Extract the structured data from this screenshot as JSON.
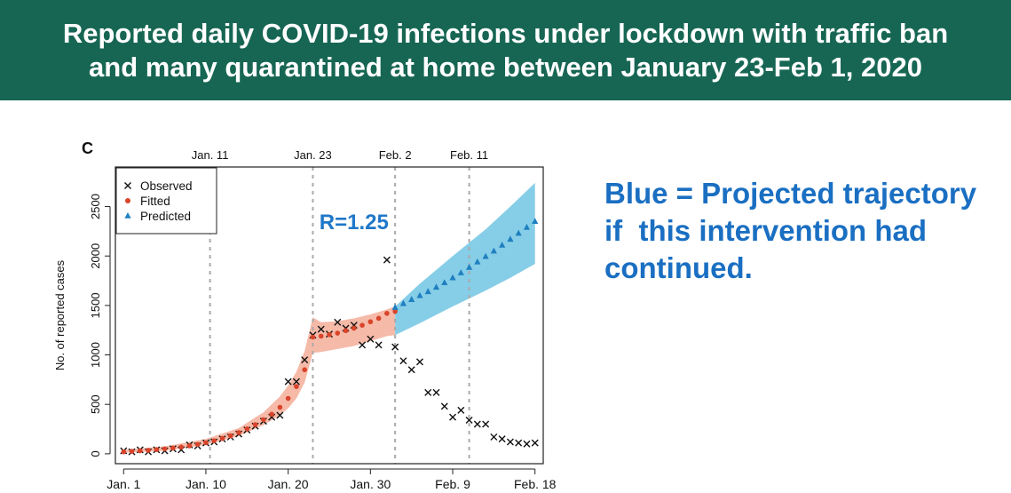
{
  "banner": {
    "line1": "Reported daily COVID-19 infections under lockdown with traffic ban",
    "line2": "and many quarantined at home between January 23-Feb 1, 2020"
  },
  "note": {
    "line1": "Blue = Projected trajectory",
    "line2": "if  this intervention had",
    "line3": "continued."
  },
  "colors": {
    "banner_bg": "#176654",
    "note_text": "#1a6fc2",
    "fitted": "#d9442b",
    "fitted_band": "#f6b6a3",
    "predicted": "#1f7fc0",
    "predicted_band": "#7fcbe6",
    "r_label": "#1f78c8"
  },
  "chart_data": {
    "type": "scatter",
    "panel_label": "C",
    "ylabel": "No. of reported cases",
    "xlim": [
      -1,
      51
    ],
    "ylim": [
      -100,
      2900
    ],
    "x_ticks": [
      {
        "x": 0,
        "label": "Jan. 1"
      },
      {
        "x": 10,
        "label": "Jan. 10"
      },
      {
        "x": 20,
        "label": "Jan. 20"
      },
      {
        "x": 30,
        "label": "Jan. 30"
      },
      {
        "x": 40,
        "label": "Feb. 9"
      },
      {
        "x": 50,
        "label": "Feb. 18"
      }
    ],
    "y_ticks": [
      0,
      500,
      1000,
      1500,
      2000,
      2500
    ],
    "top_ticks": [
      {
        "x": 10.5,
        "label": "Jan. 11"
      },
      {
        "x": 23,
        "label": "Jan. 23"
      },
      {
        "x": 33,
        "label": "Feb. 2"
      },
      {
        "x": 42,
        "label": "Feb. 11"
      }
    ],
    "vlines": [
      10.5,
      23,
      33,
      42
    ],
    "legend": {
      "position": "top-left",
      "entries": [
        {
          "marker": "×",
          "label": "Observed",
          "series": "observed"
        },
        {
          "marker": "●",
          "label": "Fitted",
          "series": "fitted"
        },
        {
          "marker": "▲",
          "label": "Predicted",
          "series": "predicted"
        }
      ]
    },
    "annotation": {
      "text": "R=1.25",
      "x": 28,
      "y": 2270
    },
    "series": [
      {
        "name": "Observed",
        "key": "observed",
        "points": [
          [
            0,
            30
          ],
          [
            1,
            20
          ],
          [
            2,
            40
          ],
          [
            3,
            20
          ],
          [
            4,
            40
          ],
          [
            5,
            30
          ],
          [
            6,
            50
          ],
          [
            7,
            40
          ],
          [
            8,
            90
          ],
          [
            9,
            80
          ],
          [
            10,
            110
          ],
          [
            11,
            120
          ],
          [
            12,
            150
          ],
          [
            13,
            170
          ],
          [
            14,
            200
          ],
          [
            15,
            240
          ],
          [
            16,
            280
          ],
          [
            17,
            330
          ],
          [
            18,
            370
          ],
          [
            19,
            390
          ],
          [
            20,
            730
          ],
          [
            21,
            730
          ],
          [
            22,
            950
          ],
          [
            23,
            1200
          ],
          [
            24,
            1260
          ],
          [
            25,
            1210
          ],
          [
            26,
            1330
          ],
          [
            27,
            1270
          ],
          [
            28,
            1300
          ],
          [
            29,
            1100
          ],
          [
            30,
            1160
          ],
          [
            31,
            1100
          ],
          [
            32,
            1960
          ],
          [
            33,
            1080
          ],
          [
            34,
            940
          ],
          [
            35,
            850
          ],
          [
            36,
            930
          ],
          [
            37,
            620
          ],
          [
            38,
            620
          ],
          [
            39,
            480
          ],
          [
            40,
            370
          ],
          [
            41,
            440
          ],
          [
            42,
            340
          ],
          [
            43,
            300
          ],
          [
            44,
            300
          ],
          [
            45,
            170
          ],
          [
            46,
            150
          ],
          [
            47,
            120
          ],
          [
            48,
            110
          ],
          [
            49,
            100
          ],
          [
            50,
            110
          ]
        ]
      },
      {
        "name": "Fitted",
        "key": "fitted",
        "points": [
          [
            0,
            20
          ],
          [
            1,
            25
          ],
          [
            2,
            30
          ],
          [
            3,
            35
          ],
          [
            4,
            42
          ],
          [
            5,
            50
          ],
          [
            6,
            58
          ],
          [
            7,
            68
          ],
          [
            8,
            80
          ],
          [
            9,
            95
          ],
          [
            10,
            112
          ],
          [
            11,
            132
          ],
          [
            12,
            155
          ],
          [
            13,
            182
          ],
          [
            14,
            215
          ],
          [
            15,
            252
          ],
          [
            16,
            295
          ],
          [
            17,
            345
          ],
          [
            18,
            400
          ],
          [
            19,
            470
          ],
          [
            20,
            560
          ],
          [
            21,
            680
          ],
          [
            22,
            850
          ],
          [
            23,
            1180
          ],
          [
            24,
            1190
          ],
          [
            25,
            1205
          ],
          [
            26,
            1220
          ],
          [
            27,
            1245
          ],
          [
            28,
            1270
          ],
          [
            29,
            1300
          ],
          [
            30,
            1335
          ],
          [
            31,
            1370
          ],
          [
            32,
            1420
          ],
          [
            33,
            1440
          ]
        ]
      },
      {
        "name": "Predicted",
        "key": "predicted",
        "points": [
          [
            33,
            1480
          ],
          [
            34,
            1520
          ],
          [
            35,
            1560
          ],
          [
            36,
            1600
          ],
          [
            37,
            1640
          ],
          [
            38,
            1685
          ],
          [
            39,
            1730
          ],
          [
            40,
            1780
          ],
          [
            41,
            1830
          ],
          [
            42,
            1885
          ],
          [
            43,
            1940
          ],
          [
            44,
            1995
          ],
          [
            45,
            2050
          ],
          [
            46,
            2110
          ],
          [
            47,
            2170
          ],
          [
            48,
            2230
          ],
          [
            49,
            2290
          ],
          [
            50,
            2350
          ]
        ]
      }
    ],
    "bands": [
      {
        "key": "fitted_band",
        "lower": [
          [
            0,
            10
          ],
          [
            5,
            30
          ],
          [
            10,
            90
          ],
          [
            14,
            180
          ],
          [
            17,
            290
          ],
          [
            19,
            390
          ],
          [
            20,
            460
          ],
          [
            21,
            560
          ],
          [
            22,
            720
          ],
          [
            23,
            1020
          ],
          [
            24,
            1030
          ],
          [
            26,
            1060
          ],
          [
            28,
            1090
          ],
          [
            30,
            1140
          ],
          [
            32,
            1190
          ],
          [
            33,
            1200
          ]
        ],
        "upper": [
          [
            0,
            40
          ],
          [
            5,
            75
          ],
          [
            10,
            150
          ],
          [
            14,
            260
          ],
          [
            17,
            420
          ],
          [
            19,
            580
          ],
          [
            20,
            690
          ],
          [
            21,
            830
          ],
          [
            22,
            1040
          ],
          [
            23,
            1380
          ],
          [
            24,
            1330
          ],
          [
            26,
            1340
          ],
          [
            28,
            1370
          ],
          [
            30,
            1410
          ],
          [
            32,
            1460
          ],
          [
            33,
            1490
          ]
        ]
      },
      {
        "key": "predicted_band",
        "lower": [
          [
            33,
            1200
          ],
          [
            36,
            1320
          ],
          [
            40,
            1490
          ],
          [
            44,
            1650
          ],
          [
            47,
            1780
          ],
          [
            50,
            1920
          ]
        ],
        "upper": [
          [
            33,
            1490
          ],
          [
            36,
            1720
          ],
          [
            40,
            2000
          ],
          [
            44,
            2270
          ],
          [
            47,
            2500
          ],
          [
            50,
            2740
          ]
        ]
      }
    ]
  }
}
